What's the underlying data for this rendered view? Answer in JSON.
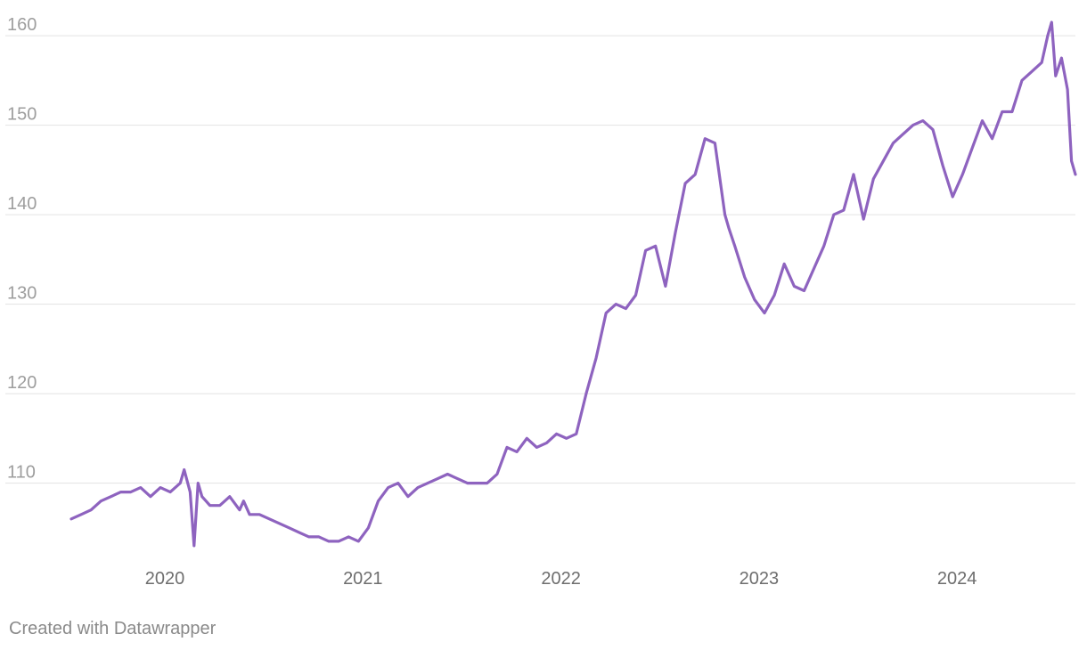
{
  "chart_data": {
    "type": "line",
    "title": "",
    "xlabel": "",
    "ylabel": "",
    "xlim": [
      2019.55,
      2024.62
    ],
    "ylim": [
      101.5,
      162
    ],
    "yticks": [
      110,
      120,
      130,
      140,
      150,
      160
    ],
    "ytick_labels": [
      "110",
      "120",
      "130",
      "140",
      "150",
      "160"
    ],
    "xticks": [
      2020,
      2021,
      2022,
      2023,
      2024
    ],
    "xtick_labels": [
      "2020",
      "2021",
      "2022",
      "2023",
      "2024"
    ],
    "grid": true,
    "color": "#8e63bf",
    "series": [
      {
        "name": "value",
        "x": [
          2019.55,
          2019.6,
          2019.65,
          2019.7,
          2019.75,
          2019.8,
          2019.85,
          2019.9,
          2019.95,
          2020.0,
          2020.05,
          2020.1,
          2020.12,
          2020.15,
          2020.17,
          2020.19,
          2020.21,
          2020.23,
          2020.25,
          2020.3,
          2020.35,
          2020.4,
          2020.42,
          2020.45,
          2020.5,
          2020.55,
          2020.6,
          2020.65,
          2020.7,
          2020.75,
          2020.8,
          2020.85,
          2020.9,
          2020.95,
          2021.0,
          2021.05,
          2021.1,
          2021.15,
          2021.2,
          2021.25,
          2021.3,
          2021.35,
          2021.4,
          2021.45,
          2021.5,
          2021.55,
          2021.6,
          2021.65,
          2021.7,
          2021.75,
          2021.8,
          2021.85,
          2021.9,
          2021.95,
          2022.0,
          2022.05,
          2022.1,
          2022.15,
          2022.2,
          2022.25,
          2022.3,
          2022.35,
          2022.4,
          2022.45,
          2022.5,
          2022.55,
          2022.6,
          2022.65,
          2022.7,
          2022.75,
          2022.8,
          2022.85,
          2022.87,
          2022.9,
          2022.95,
          2023.0,
          2023.05,
          2023.1,
          2023.15,
          2023.2,
          2023.25,
          2023.3,
          2023.35,
          2023.4,
          2023.45,
          2023.5,
          2023.55,
          2023.6,
          2023.65,
          2023.7,
          2023.75,
          2023.8,
          2023.85,
          2023.9,
          2023.95,
          2024.0,
          2024.05,
          2024.1,
          2024.15,
          2024.2,
          2024.25,
          2024.3,
          2024.35,
          2024.4,
          2024.45,
          2024.48,
          2024.5,
          2024.52,
          2024.55,
          2024.58,
          2024.6,
          2024.62
        ],
        "values": [
          106,
          106.5,
          107,
          108,
          108.5,
          109,
          109,
          109.5,
          108.5,
          109.5,
          109,
          110,
          111.5,
          109,
          103,
          110,
          108.5,
          108,
          107.5,
          107.5,
          108.5,
          107,
          108,
          106.5,
          106.5,
          106,
          105.5,
          105,
          104.5,
          104,
          104,
          103.5,
          103.5,
          104,
          103.5,
          105,
          108,
          109.5,
          110,
          108.5,
          109.5,
          110,
          110.5,
          111,
          110.5,
          110,
          110,
          110,
          111,
          114,
          113.5,
          115,
          114,
          114.5,
          115.5,
          115,
          115.5,
          120,
          124,
          129,
          130,
          129.5,
          131,
          136,
          136.5,
          132,
          138,
          143.5,
          144.5,
          148.5,
          148,
          140,
          138.5,
          136.5,
          133,
          130.5,
          129,
          131,
          134.5,
          132,
          131.5,
          134,
          136.5,
          140,
          140.5,
          144.5,
          139.5,
          144,
          146,
          148,
          149,
          150,
          150.5,
          149.5,
          145.5,
          142,
          144.5,
          147.5,
          150.5,
          148.5,
          151.5,
          151.5,
          155,
          156,
          157,
          160,
          161.5,
          155.5,
          157.5,
          154,
          146,
          144.5
        ]
      }
    ]
  },
  "footer": {
    "credit": "Created with Datawrapper"
  }
}
